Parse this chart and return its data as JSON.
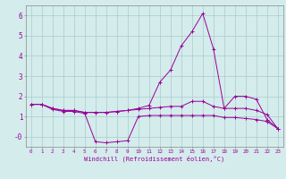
{
  "xlabel": "Windchill (Refroidissement éolien,°C)",
  "bg_color": "#d4ecec",
  "grid_color": "#aacccc",
  "line_color": "#990099",
  "x": [
    0,
    1,
    2,
    3,
    4,
    5,
    6,
    7,
    8,
    9,
    10,
    11,
    12,
    13,
    14,
    15,
    16,
    17,
    18,
    19,
    20,
    21,
    22,
    23
  ],
  "series1": [
    1.6,
    1.6,
    1.4,
    1.3,
    1.3,
    1.2,
    1.2,
    1.2,
    1.25,
    1.3,
    1.35,
    1.4,
    1.45,
    1.5,
    1.5,
    1.75,
    1.75,
    1.5,
    1.4,
    2.0,
    2.0,
    1.85,
    0.85,
    0.4
  ],
  "series2": [
    1.6,
    1.6,
    1.35,
    1.25,
    1.25,
    1.15,
    -0.25,
    -0.3,
    -0.25,
    -0.2,
    1.0,
    1.05,
    1.05,
    1.05,
    1.05,
    1.05,
    1.05,
    1.05,
    0.95,
    0.95,
    0.9,
    0.85,
    0.75,
    0.4
  ],
  "series3": [
    1.6,
    1.6,
    1.4,
    1.3,
    1.3,
    1.2,
    1.2,
    1.2,
    1.25,
    1.3,
    1.4,
    1.55,
    2.7,
    3.3,
    4.5,
    5.2,
    6.1,
    4.35,
    1.4,
    1.4,
    1.4,
    1.3,
    1.1,
    0.4
  ],
  "ylim": [
    -0.5,
    6.5
  ],
  "xlim": [
    -0.5,
    23.5
  ],
  "yticks": [
    -0.0,
    1,
    2,
    3,
    4,
    5,
    6
  ],
  "ytick_labels": [
    "-0",
    "1",
    "2",
    "3",
    "4",
    "5",
    "6"
  ]
}
